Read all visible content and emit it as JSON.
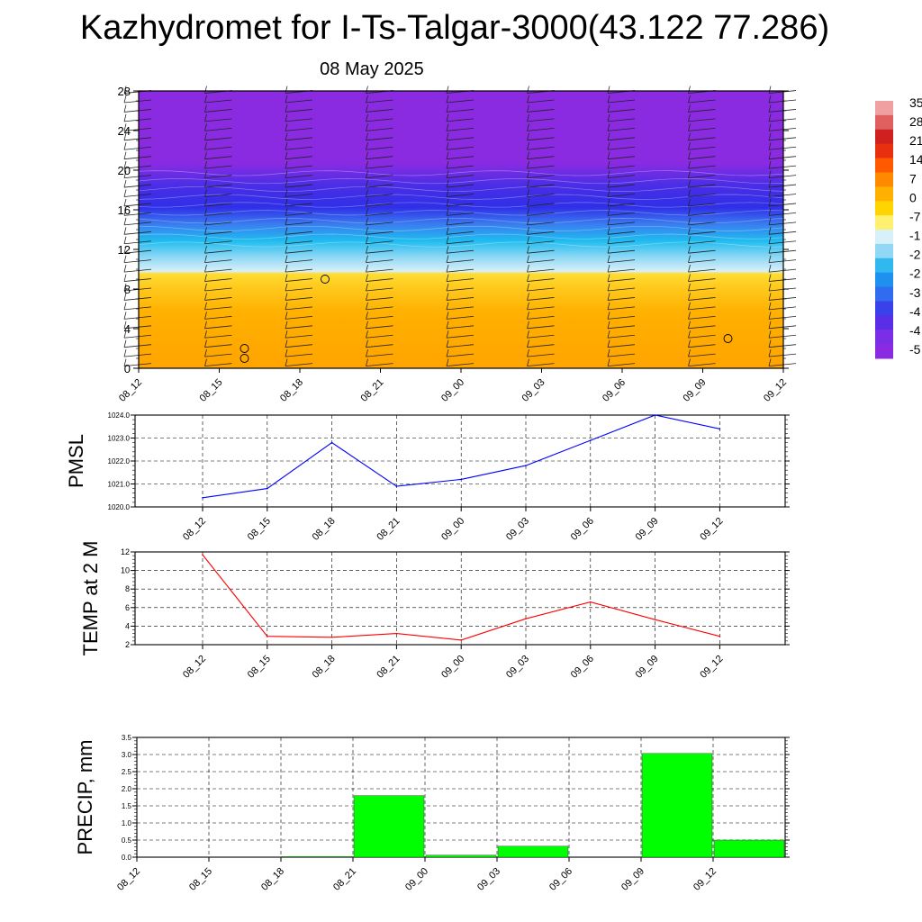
{
  "title": "Kazhydromet for I-Ts-Talgar-3000(43.122 77.286)",
  "subtitle": "08 May 2025",
  "time_labels": [
    "08_12",
    "08_15",
    "08_18",
    "08_21",
    "09_00",
    "09_03",
    "09_06",
    "09_09",
    "09_12"
  ],
  "colors": {
    "pmsl_line": "#0000ff",
    "temp_line": "#ff0000",
    "precip_bar": "#00ff00",
    "profile_top": "#8a2be2",
    "profile_blue": "#2f2fe8",
    "profile_cyan": "#1ebcef",
    "profile_yellow": "#ffdd33",
    "profile_orange": "#ffa400"
  },
  "chart_data": [
    {
      "type": "heatmap",
      "x": [
        "08_12",
        "08_15",
        "08_18",
        "08_21",
        "09_00",
        "09_03",
        "09_06",
        "09_09",
        "09_12"
      ],
      "ylim": [
        0,
        28
      ],
      "yticks": [
        0,
        4,
        8,
        12,
        16,
        20,
        24,
        28
      ],
      "colorbar_labels": [
        "35",
        "28",
        "21",
        "14",
        "7",
        "0",
        "-7",
        "-1",
        "-2",
        "-2",
        "-3",
        "-4",
        "-4",
        "-5"
      ],
      "colorbar_range": [
        -55,
        35
      ],
      "levels_approx": [
        {
          "height": 0,
          "temp": 7
        },
        {
          "height": 6,
          "temp": 0
        },
        {
          "height": 9.5,
          "temp": -6
        },
        {
          "height": 10,
          "temp": -14
        },
        {
          "height": 14,
          "temp": -32
        },
        {
          "height": 17,
          "temp": -50
        },
        {
          "height": 21,
          "temp": -58
        },
        {
          "height": 28,
          "temp": -58
        }
      ],
      "markers": [
        {
          "x": "08_15",
          "y": 2
        },
        {
          "x": "08_15",
          "y": 1
        },
        {
          "x": "08_18",
          "y": 9
        },
        {
          "x": "09_09",
          "y": 3
        }
      ],
      "wind_barbs": "present at all times and levels"
    },
    {
      "type": "line",
      "ylabel": "PMSL",
      "x": [
        "08_12",
        "08_15",
        "08_18",
        "08_21",
        "09_00",
        "09_03",
        "09_06",
        "09_09",
        "09_12"
      ],
      "values": [
        1020.4,
        1020.8,
        1022.8,
        1020.9,
        1021.2,
        1021.8,
        1022.9,
        1024.0,
        1023.4
      ],
      "ylim": [
        1020.0,
        1024.0
      ],
      "yticks": [
        "1020.0",
        "1021.0",
        "1022.0",
        "1023.0",
        "1024.0"
      ],
      "grid": true
    },
    {
      "type": "line",
      "ylabel": "TEMP at 2 M",
      "x": [
        "08_12",
        "08_15",
        "08_18",
        "08_21",
        "09_00",
        "09_03",
        "09_06",
        "09_09",
        "09_12"
      ],
      "values": [
        11.7,
        2.9,
        2.8,
        3.2,
        2.5,
        4.8,
        6.6,
        4.7,
        2.9
      ],
      "ylim": [
        2,
        12
      ],
      "yticks": [
        "2",
        "4",
        "6",
        "8",
        "10",
        "12"
      ],
      "grid": true
    },
    {
      "type": "bar",
      "ylabel": "PRECIP, mm",
      "categories": [
        "08_12",
        "08_15",
        "08_18",
        "08_21",
        "09_00",
        "09_03",
        "09_06",
        "09_09",
        "09_12"
      ],
      "values": [
        0,
        0,
        0.02,
        1.8,
        0.06,
        0.32,
        0,
        3.03,
        0.5
      ],
      "ylim": [
        0,
        3.5
      ],
      "yticks": [
        "0.0",
        "0.5",
        "1.0",
        "1.5",
        "2.0",
        "2.5",
        "3.0",
        "3.5"
      ],
      "grid": true
    }
  ]
}
